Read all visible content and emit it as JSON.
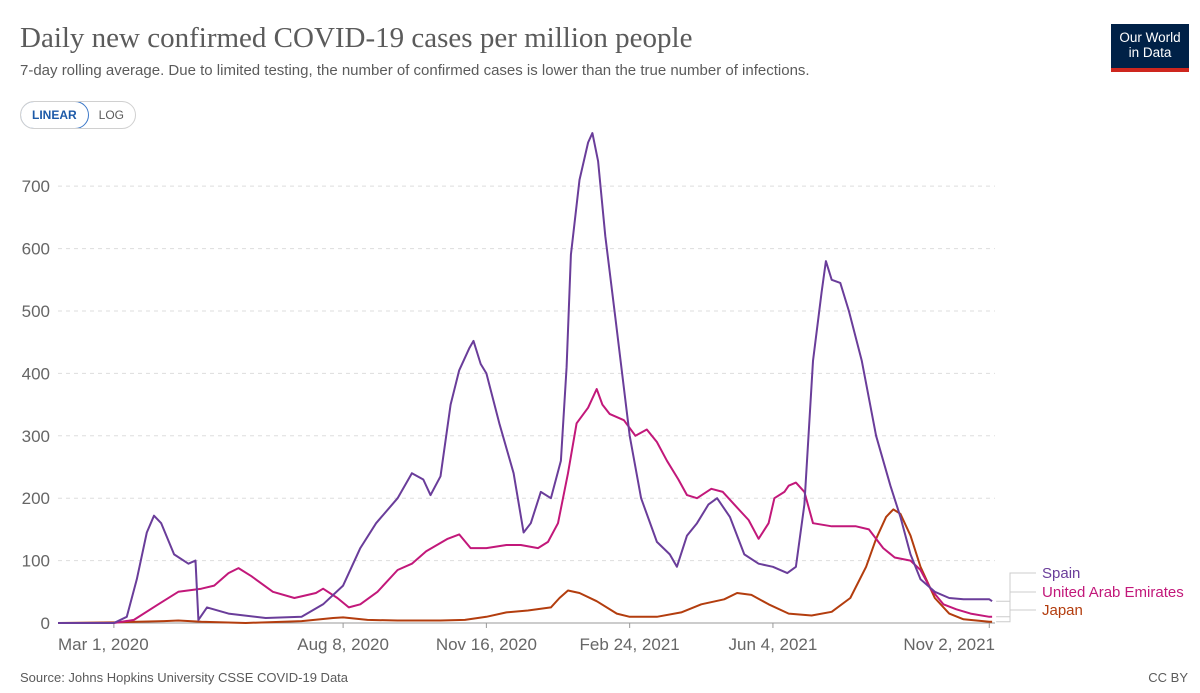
{
  "header": {
    "title": "Daily new confirmed COVID-19 cases per million people",
    "subtitle": "7-day rolling average. Due to limited testing, the number of confirmed cases is lower than the true number of infections.",
    "logo_line1": "Our World",
    "logo_line2": "in Data"
  },
  "scale_toggle": {
    "linear_label": "LINEAR",
    "log_label": "LOG",
    "selected": "LINEAR"
  },
  "footer": {
    "source": "Source: Johns Hopkins University CSSE COVID-19 Data",
    "license": "CC BY"
  },
  "colors": {
    "spain": "#6a3d9a",
    "uae": "#c2187a",
    "japan": "#b33d0e",
    "grid": "#dddddd",
    "text": "#5b5b5b"
  },
  "chart_data": {
    "type": "line",
    "title": "Daily new confirmed COVID-19 cases per million people",
    "subtitle": "7-day rolling average. Due to limited testing, the number of confirmed cases is lower than the true number of infections.",
    "ylim": [
      0,
      790
    ],
    "yticks": [
      0,
      100,
      200,
      300,
      400,
      500,
      600,
      700
    ],
    "x_range": [
      "2020-01-22",
      "2021-11-06"
    ],
    "xticks": [
      {
        "date": "2020-03-01",
        "label": "Mar 1, 2020"
      },
      {
        "date": "2020-08-08",
        "label": "Aug 8, 2020"
      },
      {
        "date": "2020-11-16",
        "label": "Nov 16, 2020"
      },
      {
        "date": "2021-02-24",
        "label": "Feb 24, 2021"
      },
      {
        "date": "2021-06-04",
        "label": "Jun 4, 2021"
      },
      {
        "date": "2021-11-02",
        "label": "Nov 2, 2021"
      }
    ],
    "grid": true,
    "legend_placement": "right end of lines",
    "series": [
      {
        "name": "Spain",
        "color": "#6a3d9a",
        "points": [
          [
            "2020-01-22",
            0
          ],
          [
            "2020-03-01",
            0
          ],
          [
            "2020-03-10",
            10
          ],
          [
            "2020-03-17",
            70
          ],
          [
            "2020-03-24",
            145
          ],
          [
            "2020-03-29",
            172
          ],
          [
            "2020-04-03",
            160
          ],
          [
            "2020-04-12",
            110
          ],
          [
            "2020-04-22",
            95
          ],
          [
            "2020-04-27",
            100
          ],
          [
            "2020-04-29",
            5
          ],
          [
            "2020-05-05",
            25
          ],
          [
            "2020-05-20",
            15
          ],
          [
            "2020-06-15",
            8
          ],
          [
            "2020-07-10",
            10
          ],
          [
            "2020-07-25",
            30
          ],
          [
            "2020-08-08",
            60
          ],
          [
            "2020-08-20",
            120
          ],
          [
            "2020-08-31",
            160
          ],
          [
            "2020-09-15",
            200
          ],
          [
            "2020-09-25",
            240
          ],
          [
            "2020-10-03",
            230
          ],
          [
            "2020-10-08",
            205
          ],
          [
            "2020-10-15",
            235
          ],
          [
            "2020-10-22",
            350
          ],
          [
            "2020-10-28",
            405
          ],
          [
            "2020-11-04",
            440
          ],
          [
            "2020-11-07",
            452
          ],
          [
            "2020-11-12",
            415
          ],
          [
            "2020-11-16",
            400
          ],
          [
            "2020-11-25",
            320
          ],
          [
            "2020-12-05",
            240
          ],
          [
            "2020-12-12",
            145
          ],
          [
            "2020-12-17",
            160
          ],
          [
            "2020-12-24",
            210
          ],
          [
            "2020-12-31",
            200
          ],
          [
            "2021-01-07",
            260
          ],
          [
            "2021-01-11",
            410
          ],
          [
            "2021-01-14",
            590
          ],
          [
            "2021-01-20",
            710
          ],
          [
            "2021-01-26",
            770
          ],
          [
            "2021-01-29",
            785
          ],
          [
            "2021-02-02",
            740
          ],
          [
            "2021-02-07",
            620
          ],
          [
            "2021-02-14",
            490
          ],
          [
            "2021-02-24",
            300
          ],
          [
            "2021-03-04",
            200
          ],
          [
            "2021-03-15",
            130
          ],
          [
            "2021-03-24",
            110
          ],
          [
            "2021-03-29",
            90
          ],
          [
            "2021-04-05",
            140
          ],
          [
            "2021-04-12",
            160
          ],
          [
            "2021-04-20",
            190
          ],
          [
            "2021-04-26",
            200
          ],
          [
            "2021-05-05",
            170
          ],
          [
            "2021-05-15",
            110
          ],
          [
            "2021-05-25",
            95
          ],
          [
            "2021-06-04",
            90
          ],
          [
            "2021-06-14",
            80
          ],
          [
            "2021-06-20",
            90
          ],
          [
            "2021-06-26",
            190
          ],
          [
            "2021-07-02",
            420
          ],
          [
            "2021-07-08",
            530
          ],
          [
            "2021-07-11",
            580
          ],
          [
            "2021-07-15",
            550
          ],
          [
            "2021-07-21",
            545
          ],
          [
            "2021-07-27",
            500
          ],
          [
            "2021-08-05",
            420
          ],
          [
            "2021-08-15",
            300
          ],
          [
            "2021-08-25",
            220
          ],
          [
            "2021-09-01",
            170
          ],
          [
            "2021-09-08",
            110
          ],
          [
            "2021-09-15",
            70
          ],
          [
            "2021-09-25",
            50
          ],
          [
            "2021-10-05",
            40
          ],
          [
            "2021-10-15",
            38
          ],
          [
            "2021-10-25",
            38
          ],
          [
            "2021-11-02",
            38
          ],
          [
            "2021-11-04",
            35
          ]
        ]
      },
      {
        "name": "United Arab Emirates",
        "color": "#c2187a",
        "points": [
          [
            "2020-01-22",
            0
          ],
          [
            "2020-03-01",
            0
          ],
          [
            "2020-03-15",
            5
          ],
          [
            "2020-04-01",
            30
          ],
          [
            "2020-04-15",
            50
          ],
          [
            "2020-05-01",
            55
          ],
          [
            "2020-05-10",
            60
          ],
          [
            "2020-05-20",
            80
          ],
          [
            "2020-05-27",
            88
          ],
          [
            "2020-06-05",
            75
          ],
          [
            "2020-06-20",
            50
          ],
          [
            "2020-07-05",
            40
          ],
          [
            "2020-07-20",
            48
          ],
          [
            "2020-07-25",
            55
          ],
          [
            "2020-08-04",
            40
          ],
          [
            "2020-08-12",
            25
          ],
          [
            "2020-08-20",
            30
          ],
          [
            "2020-09-01",
            50
          ],
          [
            "2020-09-15",
            85
          ],
          [
            "2020-09-25",
            95
          ],
          [
            "2020-10-05",
            115
          ],
          [
            "2020-10-20",
            135
          ],
          [
            "2020-10-28",
            142
          ],
          [
            "2020-11-05",
            120
          ],
          [
            "2020-11-16",
            120
          ],
          [
            "2020-11-30",
            125
          ],
          [
            "2020-12-10",
            125
          ],
          [
            "2020-12-22",
            120
          ],
          [
            "2020-12-29",
            130
          ],
          [
            "2021-01-05",
            160
          ],
          [
            "2021-01-12",
            240
          ],
          [
            "2021-01-18",
            320
          ],
          [
            "2021-01-26",
            345
          ],
          [
            "2021-02-01",
            375
          ],
          [
            "2021-02-05",
            350
          ],
          [
            "2021-02-10",
            335
          ],
          [
            "2021-02-20",
            325
          ],
          [
            "2021-02-28",
            300
          ],
          [
            "2021-03-08",
            310
          ],
          [
            "2021-03-15",
            290
          ],
          [
            "2021-03-22",
            260
          ],
          [
            "2021-03-30",
            230
          ],
          [
            "2021-04-05",
            205
          ],
          [
            "2021-04-12",
            200
          ],
          [
            "2021-04-22",
            215
          ],
          [
            "2021-04-30",
            210
          ],
          [
            "2021-05-10",
            185
          ],
          [
            "2021-05-18",
            165
          ],
          [
            "2021-05-25",
            135
          ],
          [
            "2021-06-01",
            160
          ],
          [
            "2021-06-05",
            200
          ],
          [
            "2021-06-12",
            210
          ],
          [
            "2021-06-15",
            220
          ],
          [
            "2021-06-20",
            225
          ],
          [
            "2021-06-26",
            210
          ],
          [
            "2021-07-02",
            160
          ],
          [
            "2021-07-15",
            155
          ],
          [
            "2021-08-01",
            155
          ],
          [
            "2021-08-10",
            150
          ],
          [
            "2021-08-20",
            120
          ],
          [
            "2021-08-28",
            105
          ],
          [
            "2021-09-08",
            100
          ],
          [
            "2021-09-15",
            85
          ],
          [
            "2021-09-22",
            55
          ],
          [
            "2021-10-01",
            30
          ],
          [
            "2021-10-10",
            22
          ],
          [
            "2021-10-20",
            15
          ],
          [
            "2021-11-02",
            10
          ],
          [
            "2021-11-04",
            10
          ]
        ]
      },
      {
        "name": "Japan",
        "color": "#b33d0e",
        "points": [
          [
            "2020-01-22",
            0
          ],
          [
            "2020-03-01",
            1
          ],
          [
            "2020-04-05",
            3
          ],
          [
            "2020-04-15",
            4
          ],
          [
            "2020-05-01",
            2
          ],
          [
            "2020-06-01",
            0
          ],
          [
            "2020-07-10",
            3
          ],
          [
            "2020-08-01",
            8
          ],
          [
            "2020-08-08",
            9
          ],
          [
            "2020-08-25",
            5
          ],
          [
            "2020-09-15",
            4
          ],
          [
            "2020-10-15",
            4
          ],
          [
            "2020-11-01",
            5
          ],
          [
            "2020-11-16",
            10
          ],
          [
            "2020-11-30",
            17
          ],
          [
            "2020-12-15",
            20
          ],
          [
            "2020-12-31",
            25
          ],
          [
            "2021-01-06",
            40
          ],
          [
            "2021-01-12",
            52
          ],
          [
            "2021-01-20",
            48
          ],
          [
            "2021-02-01",
            35
          ],
          [
            "2021-02-15",
            15
          ],
          [
            "2021-02-24",
            10
          ],
          [
            "2021-03-15",
            10
          ],
          [
            "2021-04-01",
            17
          ],
          [
            "2021-04-15",
            30
          ],
          [
            "2021-05-01",
            38
          ],
          [
            "2021-05-10",
            48
          ],
          [
            "2021-05-20",
            45
          ],
          [
            "2021-06-01",
            30
          ],
          [
            "2021-06-15",
            15
          ],
          [
            "2021-07-01",
            12
          ],
          [
            "2021-07-15",
            18
          ],
          [
            "2021-07-28",
            40
          ],
          [
            "2021-08-08",
            90
          ],
          [
            "2021-08-15",
            135
          ],
          [
            "2021-08-22",
            170
          ],
          [
            "2021-08-27",
            182
          ],
          [
            "2021-09-01",
            175
          ],
          [
            "2021-09-08",
            140
          ],
          [
            "2021-09-15",
            90
          ],
          [
            "2021-09-25",
            40
          ],
          [
            "2021-10-05",
            15
          ],
          [
            "2021-10-15",
            6
          ],
          [
            "2021-11-02",
            2
          ],
          [
            "2021-11-04",
            2
          ]
        ]
      }
    ]
  }
}
